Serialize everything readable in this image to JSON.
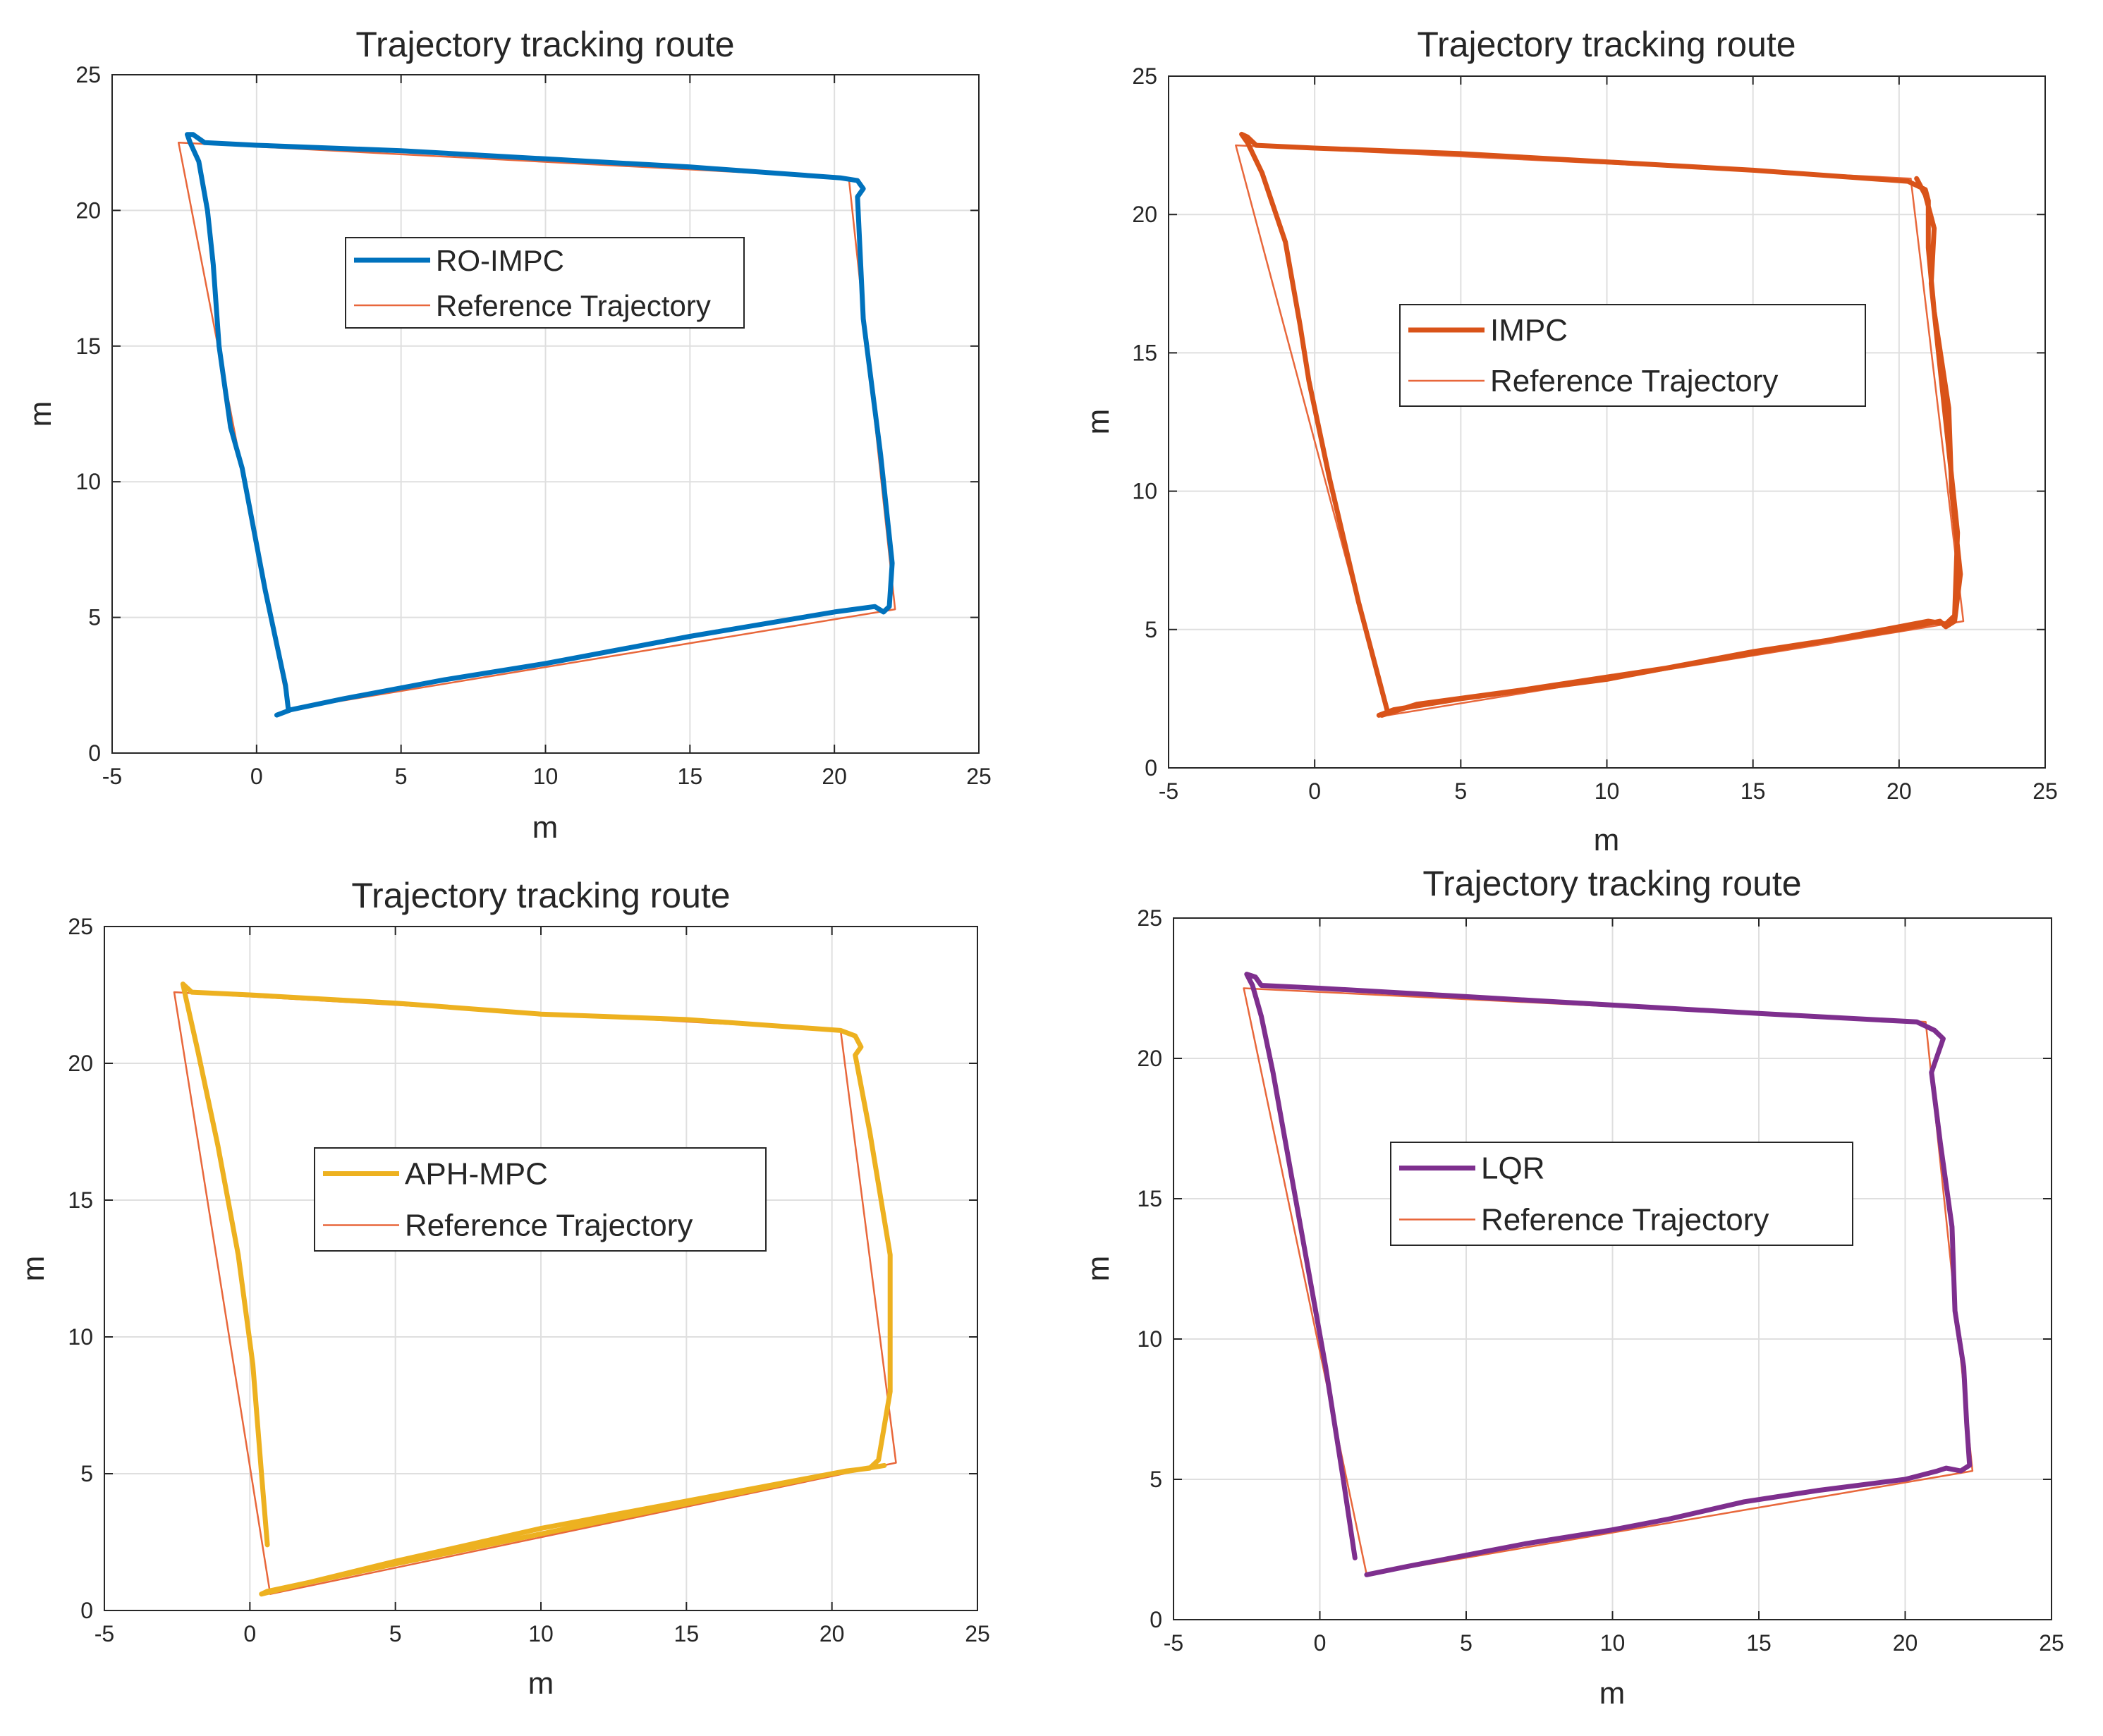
{
  "figure": {
    "layout": "2x2 grid",
    "colors": {
      "reference": "#e8673b",
      "grid": "#dfdfdf",
      "axis": "#262626"
    }
  },
  "chart_data": [
    {
      "type": "line",
      "title": "Trajectory tracking route",
      "xlabel": "m",
      "ylabel": "m",
      "xlim": [
        -5,
        25
      ],
      "ylim": [
        0,
        25
      ],
      "xticks": [
        "-5",
        "0",
        "5",
        "10",
        "15",
        "20",
        "25"
      ],
      "yticks": [
        "0",
        "5",
        "10",
        "15",
        "20",
        "25"
      ],
      "grid": true,
      "legend_position": "upper-middle",
      "series": [
        {
          "name": "RO-IMPC",
          "color": "#0072bd",
          "x": [
            0.7,
            1.2,
            3,
            6.5,
            10,
            15,
            20,
            21.4,
            21.7,
            21.9,
            22.0,
            21.6,
            21.0,
            20.8,
            21.0,
            20.8,
            20.2,
            15,
            10,
            5,
            0,
            -1.8,
            -2.2,
            -2.4,
            -2.3,
            -2.0,
            -1.7,
            -1.5,
            -1.3,
            -0.9,
            -0.5,
            0.3,
            1.0,
            1.1
          ],
          "y": [
            1.4,
            1.6,
            2.0,
            2.7,
            3.3,
            4.3,
            5.2,
            5.4,
            5.2,
            5.4,
            7.0,
            11.0,
            16.0,
            20.5,
            20.8,
            21.1,
            21.2,
            21.6,
            21.9,
            22.2,
            22.4,
            22.5,
            22.8,
            22.8,
            22.5,
            21.8,
            20.0,
            18.0,
            15.0,
            12.0,
            10.5,
            6.0,
            2.5,
            1.6
          ]
        },
        {
          "name": "Reference Trajectory",
          "color": "#e8673b",
          "x": [
            1.1,
            22.1,
            20.5,
            -2.7,
            1.1
          ],
          "y": [
            1.6,
            5.3,
            21.2,
            22.5,
            1.6
          ]
        }
      ]
    },
    {
      "type": "line",
      "title": "Trajectory tracking route",
      "xlabel": "m",
      "ylabel": "m",
      "xlim": [
        -5,
        25
      ],
      "ylim": [
        0,
        25
      ],
      "xticks": [
        "-5",
        "0",
        "5",
        "10",
        "15",
        "20",
        "25"
      ],
      "yticks": [
        "0",
        "5",
        "10",
        "15",
        "20",
        "25"
      ],
      "grid": true,
      "legend_position": "center",
      "series": [
        {
          "name": "IMPC",
          "color": "#d95319",
          "x": [
            2.2,
            2.7,
            5,
            10,
            15,
            20,
            21.4,
            21.6,
            21.9,
            22.1,
            21.8,
            21.7,
            21.2,
            21.0,
            21.0,
            20.9,
            20.3,
            15,
            10,
            5,
            0,
            -2.0,
            -2.3,
            -2.5,
            -2.3,
            -1.8,
            -1.0,
            -0.5,
            -0.2,
            0.5,
            1.5,
            2.5,
            2.3,
            3.5,
            7,
            12,
            17,
            21.0,
            21.6,
            21.9,
            22.0,
            21.7,
            21.4,
            21.1,
            21.2,
            20.9,
            20.6
          ],
          "y": [
            1.9,
            2.1,
            2.5,
            3.2,
            4.2,
            5.0,
            5.3,
            5.1,
            5.3,
            7.0,
            10.0,
            13.0,
            16.5,
            18.8,
            20.5,
            20.9,
            21.2,
            21.6,
            21.9,
            22.2,
            22.4,
            22.5,
            22.8,
            22.9,
            22.6,
            21.5,
            19.0,
            16.0,
            14.0,
            10.5,
            6.0,
            2.0,
            1.9,
            2.3,
            2.8,
            3.6,
            4.5,
            5.3,
            5.2,
            5.5,
            8.5,
            11.5,
            14.5,
            17.5,
            19.5,
            20.7,
            21.3
          ]
        },
        {
          "name": "Reference Trajectory",
          "color": "#e8673b",
          "x": [
            2.5,
            22.2,
            20.4,
            -2.7,
            2.5
          ],
          "y": [
            1.9,
            5.3,
            21.3,
            22.5,
            1.9
          ]
        }
      ]
    },
    {
      "type": "line",
      "title": "Trajectory tracking route",
      "xlabel": "m",
      "ylabel": "m",
      "xlim": [
        -5,
        25
      ],
      "ylim": [
        0,
        25
      ],
      "xticks": [
        "-5",
        "0",
        "5",
        "10",
        "15",
        "20",
        "25"
      ],
      "yticks": [
        "0",
        "5",
        "10",
        "15",
        "20",
        "25"
      ],
      "grid": true,
      "legend_position": "center",
      "series": [
        {
          "name": "APH-MPC",
          "color": "#edb120",
          "x": [
            0.6,
            0.4,
            0.1,
            -0.4,
            -1.1,
            -1.8,
            -2.2,
            -2.3,
            -2.0,
            0,
            5,
            10,
            15,
            20.3,
            20.8,
            21.0,
            20.8,
            21.3,
            22.0,
            22.0,
            21.6,
            21.3,
            20.5,
            15,
            10,
            5,
            0.4,
            0.6,
            5,
            10,
            15,
            20,
            21.8
          ],
          "y": [
            2.4,
            5.0,
            9.0,
            13.0,
            17.0,
            20.5,
            22.4,
            22.9,
            22.6,
            22.5,
            22.2,
            21.8,
            21.6,
            21.2,
            21.0,
            20.6,
            20.3,
            17.5,
            13.0,
            8.0,
            5.5,
            5.2,
            5.1,
            4.0,
            3.0,
            1.8,
            0.6,
            0.7,
            1.7,
            2.8,
            3.9,
            5.0,
            5.3
          ]
        },
        {
          "name": "Reference Trajectory",
          "color": "#e8673b",
          "x": [
            0.7,
            22.2,
            20.3,
            -2.6,
            0.7
          ],
          "y": [
            0.6,
            5.4,
            21.2,
            22.6,
            0.6
          ]
        }
      ]
    },
    {
      "type": "line",
      "title": "Trajectory tracking route",
      "xlabel": "m",
      "ylabel": "m",
      "xlim": [
        -5,
        25
      ],
      "ylim": [
        0,
        25
      ],
      "xticks": [
        "-5",
        "0",
        "5",
        "10",
        "15",
        "20",
        "25"
      ],
      "yticks": [
        "0",
        "5",
        "10",
        "15",
        "20",
        "25"
      ],
      "grid": true,
      "legend_position": "center",
      "series": [
        {
          "name": "LQR",
          "color": "#7e2f8e",
          "x": [
            1.2,
            0.8,
            0.2,
            -0.4,
            -1.0,
            -1.6,
            -2.0,
            -2.3,
            -2.5,
            -2.2,
            -2.0,
            0,
            5,
            10,
            15,
            20.4,
            21.0,
            21.3,
            20.9,
            21.2,
            21.6,
            21.7,
            22.0,
            22.1,
            22.2,
            21.9,
            21.4,
            21.1,
            20.0,
            17,
            14.5,
            12,
            10,
            7,
            5,
            3,
            1.6
          ],
          "y": [
            2.2,
            5.0,
            9.0,
            12.5,
            16.0,
            19.5,
            21.5,
            22.6,
            23.0,
            22.9,
            22.6,
            22.5,
            22.2,
            21.9,
            21.6,
            21.3,
            21.0,
            20.7,
            19.5,
            17.0,
            14.0,
            11.0,
            9.0,
            7.0,
            5.5,
            5.3,
            5.4,
            5.3,
            5.0,
            4.6,
            4.2,
            3.6,
            3.2,
            2.7,
            2.3,
            1.9,
            1.6
          ]
        },
        {
          "name": "Reference Trajectory",
          "color": "#e8673b",
          "x": [
            1.6,
            22.3,
            20.7,
            -2.6,
            1.6
          ],
          "y": [
            1.6,
            5.3,
            21.3,
            22.5,
            1.6
          ]
        }
      ]
    }
  ]
}
